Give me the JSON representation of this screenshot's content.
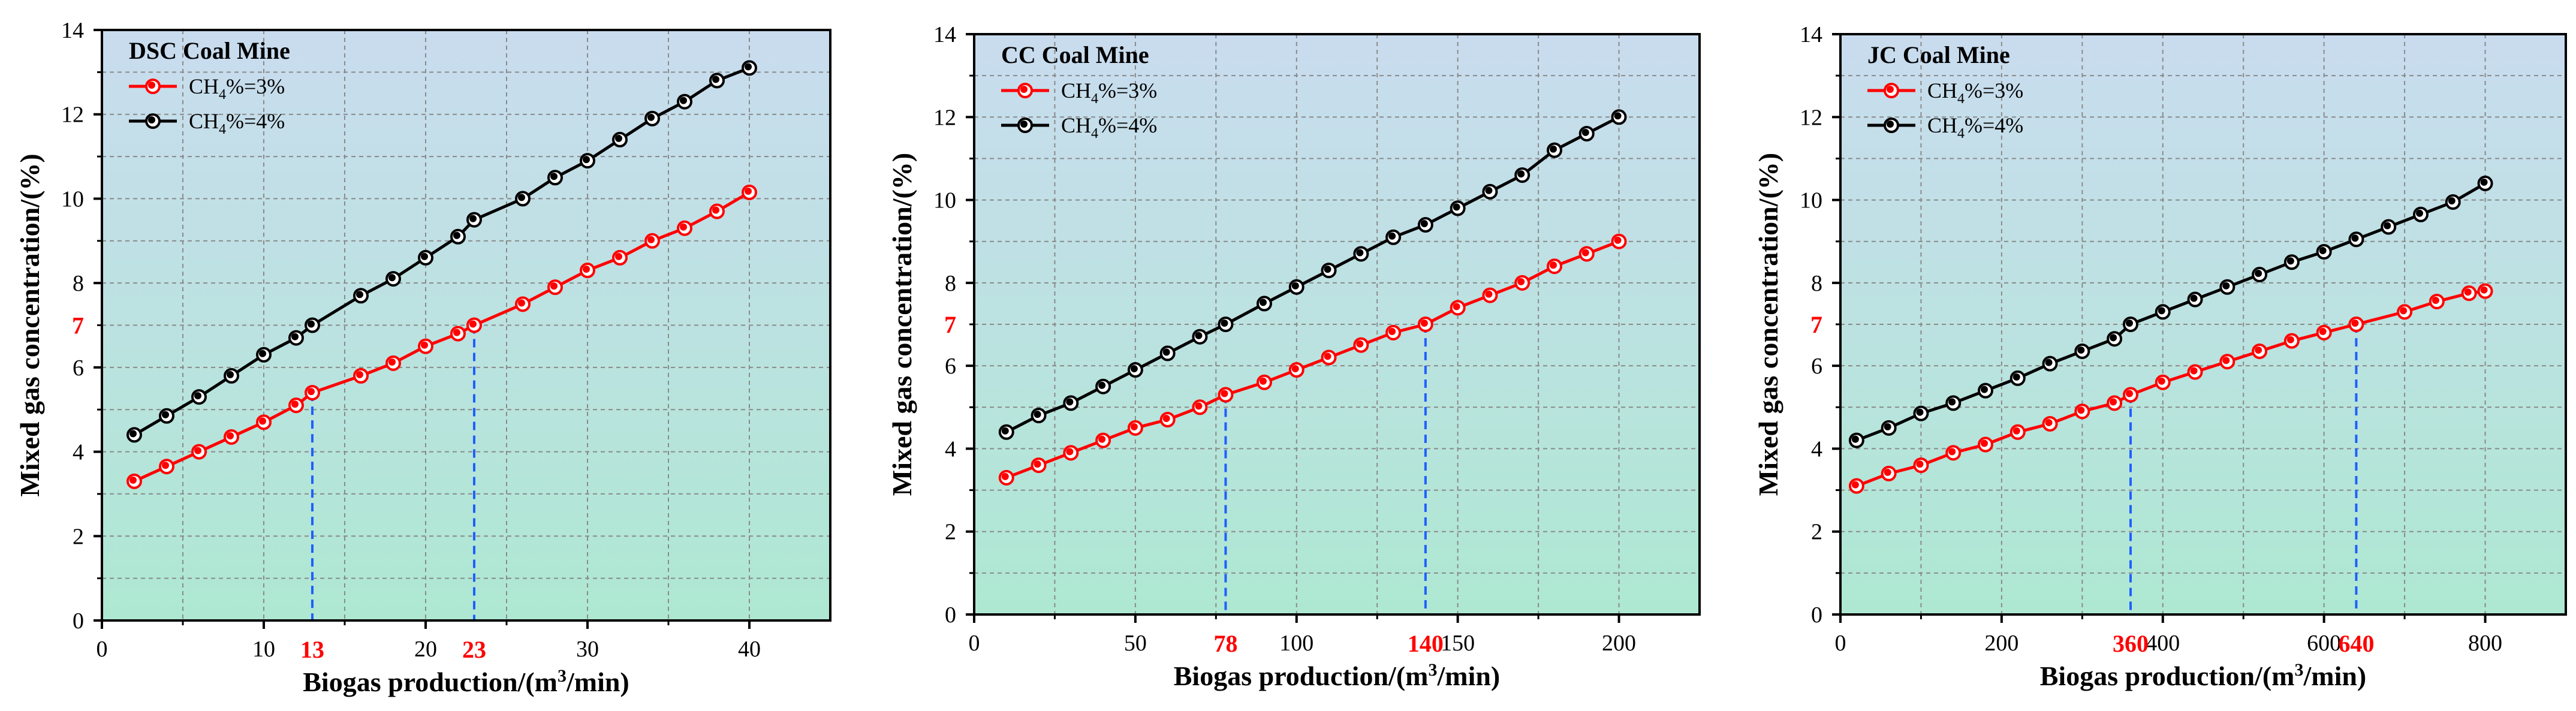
{
  "colors": {
    "series_3": "#ff0000",
    "series_4": "#000000",
    "marker_line": "#1f5fff",
    "bg_top": "#c9dcef",
    "bg_bottom": "#aee8d2",
    "highlight_tick": "#ff0000"
  },
  "chart_data": [
    {
      "type": "line",
      "title": "DSC Coal Mine",
      "xlabel": "Biogas production/(m³/min)",
      "ylabel": "Mixed gas concentration/(%)",
      "xlim": [
        0,
        45
      ],
      "ylim": [
        0,
        14
      ],
      "xticks": [
        0,
        10,
        20,
        30,
        40
      ],
      "yticks": [
        0,
        2,
        4,
        6,
        8,
        10,
        12,
        14
      ],
      "highlight_x": [
        13,
        23
      ],
      "highlight_y": 7,
      "grid": true,
      "legend_position": "top-left",
      "series": [
        {
          "name": "CH4%=3%",
          "label_main": "CH",
          "label_sub": "4",
          "label_rest": "%=3%",
          "color": "#ff0000",
          "x": [
            2,
            4,
            6,
            8,
            10,
            12,
            13,
            16,
            18,
            20,
            22,
            23,
            26,
            28,
            30,
            32,
            34,
            36,
            38,
            40
          ],
          "y": [
            3.3,
            3.65,
            4.0,
            4.35,
            4.7,
            5.1,
            5.4,
            5.8,
            6.1,
            6.5,
            6.8,
            7.0,
            7.5,
            7.9,
            8.3,
            8.6,
            9.0,
            9.3,
            9.7,
            10.15
          ]
        },
        {
          "name": "CH4%=4%",
          "label_main": "CH",
          "label_sub": "4",
          "label_rest": "%=4%",
          "color": "#000000",
          "x": [
            2,
            4,
            6,
            8,
            10,
            12,
            13,
            16,
            18,
            20,
            22,
            23,
            26,
            28,
            30,
            32,
            34,
            36,
            38,
            40
          ],
          "y": [
            4.4,
            4.85,
            5.3,
            5.8,
            6.3,
            6.7,
            7.0,
            7.7,
            8.1,
            8.6,
            9.1,
            9.5,
            10.0,
            10.5,
            10.9,
            11.4,
            11.9,
            12.3,
            12.8,
            13.1
          ]
        }
      ]
    },
    {
      "type": "line",
      "title": "CC Coal Mine",
      "xlabel": "Biogas production/(m³/min)",
      "ylabel": "Mixed gas concentration/(%)",
      "xlim": [
        0,
        225
      ],
      "ylim": [
        0,
        14
      ],
      "xticks": [
        0,
        50,
        100,
        150,
        200
      ],
      "yticks": [
        0,
        2,
        4,
        6,
        8,
        10,
        12,
        14
      ],
      "highlight_x": [
        78,
        140
      ],
      "highlight_y": 7,
      "grid": true,
      "legend_position": "top-left",
      "series": [
        {
          "name": "CH4%=3%",
          "label_main": "CH",
          "label_sub": "4",
          "label_rest": "%=3%",
          "color": "#ff0000",
          "x": [
            10,
            20,
            30,
            40,
            50,
            60,
            70,
            78,
            90,
            100,
            110,
            120,
            130,
            140,
            150,
            160,
            170,
            180,
            190,
            200
          ],
          "y": [
            3.3,
            3.6,
            3.9,
            4.2,
            4.5,
            4.7,
            5.0,
            5.3,
            5.6,
            5.9,
            6.2,
            6.5,
            6.8,
            7.0,
            7.4,
            7.7,
            8.0,
            8.4,
            8.7,
            9.0
          ]
        },
        {
          "name": "CH4%=4%",
          "label_main": "CH",
          "label_sub": "4",
          "label_rest": "%=4%",
          "color": "#000000",
          "x": [
            10,
            20,
            30,
            40,
            50,
            60,
            70,
            78,
            90,
            100,
            110,
            120,
            130,
            140,
            150,
            160,
            170,
            180,
            190,
            200
          ],
          "y": [
            4.4,
            4.8,
            5.1,
            5.5,
            5.9,
            6.3,
            6.7,
            7.0,
            7.5,
            7.9,
            8.3,
            8.7,
            9.1,
            9.4,
            9.8,
            10.2,
            10.6,
            11.2,
            11.6,
            12.0
          ]
        }
      ]
    },
    {
      "type": "line",
      "title": "JC Coal Mine",
      "xlabel": "Biogas production/(m³/min)",
      "ylabel": "Mixed gas concentration/(%)",
      "xlim": [
        0,
        900
      ],
      "ylim": [
        0,
        14
      ],
      "xticks": [
        0,
        200,
        400,
        600,
        800
      ],
      "yticks": [
        0,
        2,
        4,
        6,
        8,
        10,
        12,
        14
      ],
      "highlight_x": [
        360,
        640
      ],
      "highlight_y": 7,
      "grid": true,
      "legend_position": "top-left",
      "series": [
        {
          "name": "CH4%=3%",
          "label_main": "CH",
          "label_sub": "4",
          "label_rest": "%=3%",
          "color": "#ff0000",
          "x": [
            20,
            60,
            100,
            140,
            180,
            220,
            260,
            300,
            340,
            360,
            400,
            440,
            480,
            520,
            560,
            600,
            640,
            700,
            740,
            780,
            800
          ],
          "y": [
            3.1,
            3.4,
            3.6,
            3.9,
            4.1,
            4.4,
            4.6,
            4.9,
            5.1,
            5.3,
            5.6,
            5.85,
            6.1,
            6.35,
            6.6,
            6.8,
            7.0,
            7.3,
            7.55,
            7.75,
            7.8
          ]
        },
        {
          "name": "CH4%=4%",
          "label_main": "CH",
          "label_sub": "4",
          "label_rest": "%=4%",
          "color": "#000000",
          "x": [
            20,
            60,
            100,
            140,
            180,
            220,
            260,
            300,
            340,
            360,
            400,
            440,
            480,
            520,
            560,
            600,
            640,
            680,
            720,
            760,
            800
          ],
          "y": [
            4.2,
            4.5,
            4.85,
            5.1,
            5.4,
            5.7,
            6.05,
            6.35,
            6.65,
            7.0,
            7.3,
            7.6,
            7.9,
            8.2,
            8.5,
            8.75,
            9.05,
            9.35,
            9.65,
            9.95,
            10.4
          ]
        }
      ]
    }
  ]
}
